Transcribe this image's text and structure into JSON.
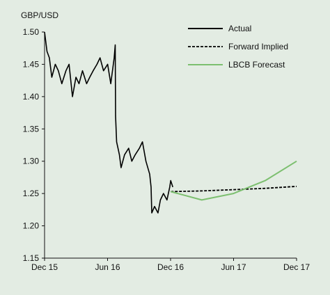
{
  "chart_data": {
    "type": "line",
    "y_unit_label": "GBP/USD",
    "x_ticks": [
      "Dec 15",
      "Jun 16",
      "Dec 16",
      "Jun 17",
      "Dec 17"
    ],
    "x_range": [
      "2015-12",
      "2017-12"
    ],
    "y_range": [
      1.15,
      1.5
    ],
    "y_ticks": [
      "1.15",
      "1.20",
      "1.25",
      "1.30",
      "1.35",
      "1.40",
      "1.45",
      "1.50"
    ],
    "grid": false,
    "legend_position": "top-right",
    "series": [
      {
        "name": "Actual",
        "style": "solid",
        "color": "#000000",
        "x": [
          "2015-12-01",
          "2015-12-08",
          "2015-12-15",
          "2015-12-22",
          "2016-01-01",
          "2016-01-10",
          "2016-01-20",
          "2016-02-01",
          "2016-02-10",
          "2016-02-20",
          "2016-03-01",
          "2016-03-10",
          "2016-03-20",
          "2016-04-01",
          "2016-04-10",
          "2016-04-20",
          "2016-05-01",
          "2016-05-10",
          "2016-05-20",
          "2016-06-01",
          "2016-06-10",
          "2016-06-20",
          "2016-06-23",
          "2016-06-24",
          "2016-06-27",
          "2016-07-01",
          "2016-07-05",
          "2016-07-10",
          "2016-07-20",
          "2016-08-01",
          "2016-08-10",
          "2016-08-20",
          "2016-09-01",
          "2016-09-10",
          "2016-09-20",
          "2016-10-01",
          "2016-10-05",
          "2016-10-07",
          "2016-10-15",
          "2016-10-25",
          "2016-11-01",
          "2016-11-10",
          "2016-11-20",
          "2016-11-28",
          "2016-12-01",
          "2016-12-07"
        ],
        "y": [
          1.5,
          1.47,
          1.46,
          1.43,
          1.45,
          1.44,
          1.42,
          1.44,
          1.45,
          1.4,
          1.43,
          1.42,
          1.44,
          1.42,
          1.43,
          1.44,
          1.45,
          1.46,
          1.44,
          1.45,
          1.42,
          1.46,
          1.48,
          1.37,
          1.33,
          1.32,
          1.31,
          1.29,
          1.31,
          1.32,
          1.3,
          1.31,
          1.32,
          1.33,
          1.3,
          1.28,
          1.26,
          1.22,
          1.23,
          1.22,
          1.24,
          1.25,
          1.24,
          1.26,
          1.27,
          1.26
        ]
      },
      {
        "name": "Forward Implied",
        "style": "dashed",
        "color": "#000000",
        "x": [
          "2016-12-01",
          "2017-03-01",
          "2017-06-01",
          "2017-09-01",
          "2017-12-01"
        ],
        "y": [
          1.253,
          1.254,
          1.256,
          1.258,
          1.261
        ]
      },
      {
        "name": "LBCB Forecast",
        "style": "solid",
        "color": "#7cbf6f",
        "x": [
          "2016-12-01",
          "2017-03-01",
          "2017-06-01",
          "2017-09-01",
          "2017-12-01"
        ],
        "y": [
          1.253,
          1.24,
          1.25,
          1.27,
          1.3
        ]
      }
    ]
  }
}
